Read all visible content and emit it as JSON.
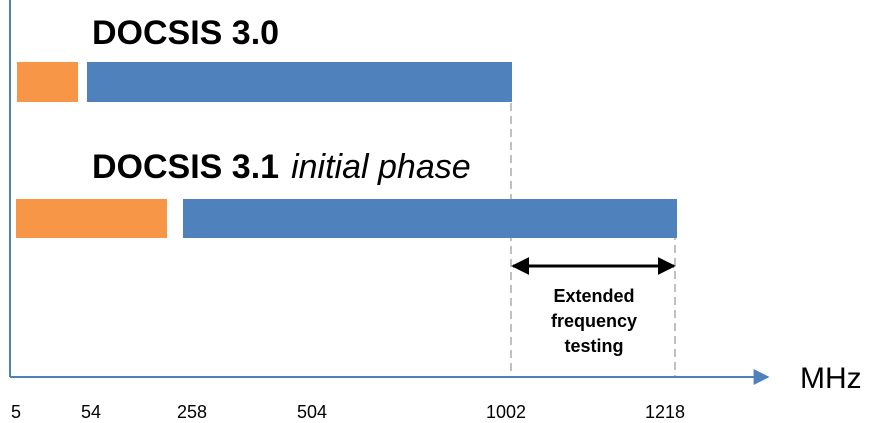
{
  "headings": {
    "docsis30": "DOCSIS 3.0",
    "docsis31": "DOCSIS 3.1",
    "docsis31_phase": "initial phase"
  },
  "axis": {
    "unit": "MHz",
    "ticks": [
      "5",
      "54",
      "258",
      "504",
      "1002",
      "1218"
    ]
  },
  "annotation": {
    "lines": [
      "Extended",
      "frequency",
      "testing"
    ]
  },
  "bands": {
    "docsis30": {
      "upstream_mhz": [
        5,
        42
      ],
      "downstream_mhz": [
        54,
        1002
      ]
    },
    "docsis31": {
      "upstream_mhz": [
        5,
        204
      ],
      "downstream_mhz": [
        258,
        1218
      ]
    }
  },
  "colors": {
    "upstream": "#f79646",
    "downstream": "#4f81bd",
    "axis": "#4f81bd",
    "guide": "#c0c0c0",
    "arrow": "#000000"
  }
}
